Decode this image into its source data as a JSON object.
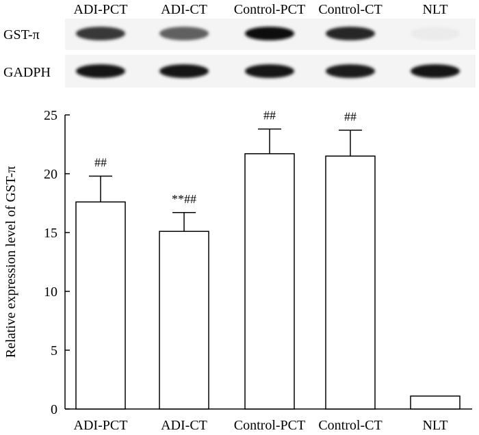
{
  "blot": {
    "lane_labels": [
      "ADI-PCT",
      "ADI-CT",
      "Control-PCT",
      "Control-CT",
      "NLT"
    ],
    "rows": [
      {
        "label": "GST-π",
        "band_intensity": [
          0.78,
          0.62,
          0.95,
          0.85,
          0.08
        ]
      },
      {
        "label": "GADPH",
        "band_intensity": [
          0.92,
          0.9,
          0.9,
          0.88,
          0.9
        ]
      }
    ]
  },
  "chart_data": {
    "type": "bar",
    "categories": [
      "ADI-PCT",
      "ADI-CT",
      "Control-PCT",
      "Control-CT",
      "NLT"
    ],
    "values": [
      17.6,
      15.1,
      21.7,
      21.5,
      1.1
    ],
    "errors": [
      2.2,
      1.6,
      2.1,
      2.2,
      0
    ],
    "annotations": [
      "##",
      "**##",
      "##",
      "##",
      ""
    ],
    "ylabel": "Relative expression level of GST-π",
    "xlabel": "",
    "ylim": [
      0,
      25
    ],
    "yticks": [
      0,
      5,
      10,
      15,
      20,
      25
    ],
    "grid": false,
    "bar_fill": "#ffffff",
    "bar_stroke": "#000000"
  }
}
